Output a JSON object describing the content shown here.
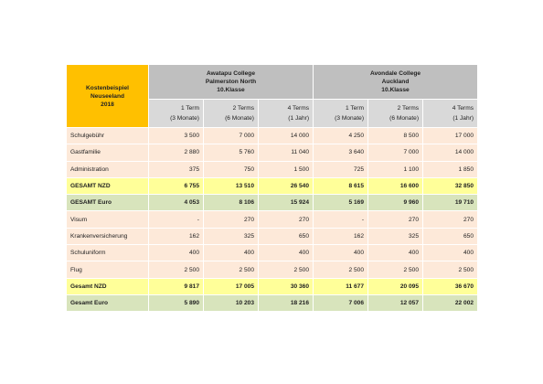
{
  "header": {
    "corner": [
      "Kostenbeispiel",
      "Neuseeland",
      "2018"
    ],
    "schools": [
      {
        "name": "Awatapu College",
        "city": "Palmerston North",
        "grade": "10.Klasse"
      },
      {
        "name": "Avondale College",
        "city": "Auckland",
        "grade": "10.Klasse"
      }
    ],
    "terms": [
      [
        "1 Term",
        "(3 Monate)"
      ],
      [
        "2 Terms",
        "(6 Monate)"
      ],
      [
        "4 Terms",
        "(1 Jahr)"
      ],
      [
        "1 Term",
        "(3 Monate)"
      ],
      [
        "2 Terms",
        "(6 Monate)"
      ],
      [
        "4 Terms",
        "(1 Jahr)"
      ]
    ]
  },
  "table": {
    "rows": [
      [
        "Schulgebühr",
        "3 500",
        "7 000",
        "14 000",
        "4 250",
        "8 500",
        "17 000"
      ],
      [
        "Gastfamilie",
        "2 880",
        "5 760",
        "11 040",
        "3 640",
        "7 000",
        "14 000"
      ],
      [
        "Administration",
        "375",
        "750",
        "1 500",
        "725",
        "1 100",
        "1 850"
      ],
      [
        "GESAMT NZD",
        "6 755",
        "13 510",
        "26 540",
        "8 615",
        "16 600",
        "32 850"
      ],
      [
        "GESAMT Euro",
        "4 053",
        "8 106",
        "15 924",
        "5 169",
        "9 960",
        "19 710"
      ],
      [
        "Visum",
        "-",
        "270",
        "270",
        "-",
        "270",
        "270"
      ],
      [
        "Krankenversicherung",
        "162",
        "325",
        "650",
        "162",
        "325",
        "650"
      ],
      [
        "Schuluniform",
        "400",
        "400",
        "400",
        "400",
        "400",
        "400"
      ],
      [
        "Flug",
        "2 500",
        "2 500",
        "2 500",
        "2 500",
        "2 500",
        "2 500"
      ],
      [
        "Gesamt NZD",
        "9 817",
        "17 005",
        "30 360",
        "11 677",
        "20 095",
        "36 670"
      ],
      [
        "Gesamt Euro",
        "5 890",
        "10 203",
        "18 216",
        "7 006",
        "12 057",
        "22 002"
      ]
    ]
  }
}
